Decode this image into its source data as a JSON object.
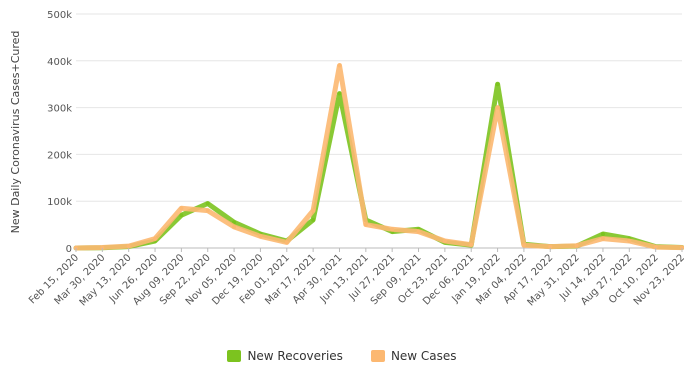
{
  "chart_data": {
    "type": "line",
    "title": "",
    "xlabel": "",
    "ylabel": "New Daily Coronavirus Cases+Cured",
    "ylim": [
      0,
      500000
    ],
    "yticks": [
      "0",
      "100k",
      "200k",
      "300k",
      "400k",
      "500k"
    ],
    "ytick_values": [
      0,
      100000,
      200000,
      300000,
      400000,
      500000
    ],
    "grid": true,
    "legend": "bottom",
    "x": [
      "Feb 15, 2020",
      "Mar 30, 2020",
      "May 13, 2020",
      "Jun 26, 2020",
      "Aug 09, 2020",
      "Sep 22, 2020",
      "Nov 05, 2020",
      "Dec 19, 2020",
      "Feb 01, 2021",
      "Mar 17, 2021",
      "Apr 30, 2021",
      "Jun 13, 2021",
      "Jul 27, 2021",
      "Sep 09, 2021",
      "Oct 23, 2021",
      "Dec 06, 2021",
      "Jan 19, 2022",
      "Mar 04, 2022",
      "Apr 17, 2022",
      "May 31, 2022",
      "Jul 14, 2022",
      "Aug 27, 2022",
      "Oct 10, 2022",
      "Nov 23, 2022"
    ],
    "series": [
      {
        "name": "New Recoveries",
        "color": "#7cc31f",
        "values": [
          0,
          500,
          3000,
          15000,
          70000,
          95000,
          55000,
          30000,
          15000,
          60000,
          330000,
          60000,
          35000,
          40000,
          12000,
          6000,
          350000,
          8000,
          3000,
          4000,
          30000,
          20000,
          3000,
          1000
        ]
      },
      {
        "name": "New Cases",
        "color": "#fcb871",
        "values": [
          0,
          1000,
          4000,
          20000,
          85000,
          80000,
          45000,
          25000,
          12000,
          80000,
          390000,
          50000,
          40000,
          35000,
          15000,
          7000,
          300000,
          6000,
          3000,
          5000,
          20000,
          15000,
          2000,
          800
        ]
      }
    ]
  }
}
